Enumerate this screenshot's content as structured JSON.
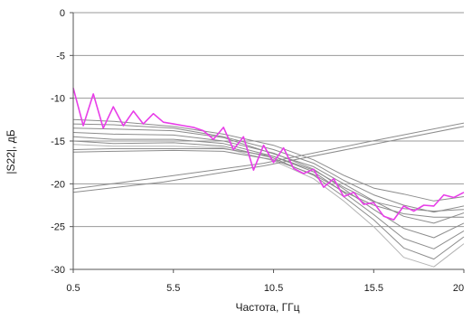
{
  "chart_data": {
    "type": "line",
    "title": "",
    "xlabel": "Частота, ГГц",
    "ylabel": "|S22|, дБ",
    "xlim": [
      0.5,
      20
    ],
    "ylim": [
      -30,
      0
    ],
    "x_ticks": [
      0.5,
      5.5,
      10.5,
      15.5,
      20
    ],
    "x_tick_labels": [
      "0.5",
      "5.5",
      "10.5",
      "15.5",
      "20"
    ],
    "y_ticks": [
      0,
      -5,
      -10,
      -15,
      -20,
      -25,
      -30
    ],
    "y_tick_labels": [
      "0",
      "-5",
      "-10",
      "-15",
      "-20",
      "-25",
      "-30"
    ],
    "grid": "horizontal",
    "legend": "none",
    "colors": {
      "highlight": "#e83ee8",
      "family": "#8c8c8c",
      "family_light": "#b4b4b4",
      "axis": "#555555",
      "grid": "#9a9a9a"
    },
    "series": [
      {
        "color": "#e83ee8",
        "x": [
          0.5,
          1.0,
          1.5,
          2.0,
          2.5,
          3.0,
          3.5,
          4.0,
          4.5,
          5.0,
          5.5,
          6.0,
          6.5,
          7.0,
          7.5,
          8.0,
          8.5,
          9.0,
          9.5,
          10.0,
          10.5,
          11.0,
          11.5,
          12.0,
          12.5,
          13.0,
          13.5,
          14.0,
          14.5,
          15.0,
          15.5,
          16.0,
          16.5,
          17.0,
          17.5,
          18.0,
          18.5,
          19.0,
          19.5,
          20.0
        ],
        "values": [
          -8.8,
          -13.2,
          -9.5,
          -13.5,
          -11.0,
          -13.2,
          -11.5,
          -13.0,
          -11.8,
          -12.8,
          -13.0,
          -13.2,
          -13.4,
          -13.8,
          -14.8,
          -13.4,
          -16.0,
          -14.5,
          -18.4,
          -15.5,
          -17.5,
          -15.8,
          -18.2,
          -18.8,
          -18.3,
          -20.4,
          -19.4,
          -21.5,
          -21.0,
          -22.4,
          -22.2,
          -23.8,
          -24.2,
          -22.6,
          -23.2,
          -22.5,
          -22.6,
          -21.3,
          -21.6,
          -21.0
        ]
      },
      {
        "color": "#8c8c8c",
        "x": [
          0.5,
          2.5,
          5.5,
          8.0,
          10.5,
          12.5,
          14.0,
          15.5,
          17.0,
          18.5,
          20.0
        ],
        "values": [
          -12.5,
          -12.7,
          -13.3,
          -14.2,
          -15.5,
          -17.2,
          -19.0,
          -20.5,
          -21.2,
          -22.0,
          -21.5
        ]
      },
      {
        "color": "#8c8c8c",
        "x": [
          0.5,
          2.5,
          5.5,
          8.0,
          10.5,
          12.5,
          14.0,
          15.5,
          17.0,
          18.5,
          20.0
        ],
        "values": [
          -13.0,
          -13.1,
          -13.5,
          -14.5,
          -16.0,
          -17.6,
          -19.6,
          -21.3,
          -22.5,
          -23.3,
          -22.6
        ]
      },
      {
        "color": "#8c8c8c",
        "x": [
          0.5,
          2.5,
          5.5,
          8.0,
          10.5,
          12.5,
          14.0,
          15.5,
          17.0,
          18.5,
          20.0
        ],
        "values": [
          -13.5,
          -13.6,
          -13.8,
          -14.6,
          -16.5,
          -18.0,
          -20.0,
          -22.0,
          -23.8,
          -24.6,
          -23.4
        ]
      },
      {
        "color": "#8c8c8c",
        "x": [
          0.5,
          2.5,
          5.5,
          8.0,
          10.5,
          12.5,
          14.0,
          15.5,
          17.0,
          18.5,
          20.0
        ],
        "values": [
          -14.0,
          -14.2,
          -14.3,
          -15.0,
          -16.4,
          -18.3,
          -20.6,
          -23.0,
          -25.2,
          -26.3,
          -24.6
        ]
      },
      {
        "color": "#8c8c8c",
        "x": [
          0.5,
          2.5,
          5.5,
          8.0,
          10.5,
          12.5,
          14.0,
          15.5,
          17.0,
          18.5,
          20.0
        ],
        "values": [
          -14.5,
          -14.8,
          -14.8,
          -15.3,
          -16.8,
          -18.6,
          -21.0,
          -23.6,
          -26.4,
          -27.6,
          -25.5
        ]
      },
      {
        "color": "#8c8c8c",
        "x": [
          0.5,
          2.5,
          5.5,
          8.0,
          10.5,
          12.5,
          14.0,
          15.5,
          17.0,
          18.5,
          20.0
        ],
        "values": [
          -15.0,
          -15.3,
          -15.2,
          -15.6,
          -17.0,
          -19.0,
          -21.5,
          -24.2,
          -27.5,
          -28.8,
          -26.2
        ]
      },
      {
        "color": "#b4b4b4",
        "x": [
          0.5,
          2.5,
          5.5,
          8.0,
          10.5,
          12.5,
          14.0,
          15.5,
          17.0,
          18.5,
          20.0
        ],
        "values": [
          -15.4,
          -15.6,
          -15.6,
          -15.8,
          -17.3,
          -19.4,
          -22.0,
          -25.0,
          -28.6,
          -29.7,
          -27.0
        ]
      },
      {
        "color": "#8c8c8c",
        "x": [
          0.5,
          2.5,
          5.5,
          8.0,
          10.5,
          12.5,
          14.0,
          15.5,
          17.0,
          18.5,
          20.0
        ],
        "values": [
          -16.0,
          -15.9,
          -15.9,
          -15.9,
          -16.8,
          -18.4,
          -20.4,
          -22.1,
          -22.9,
          -23.2,
          -23.0
        ]
      },
      {
        "color": "#8c8c8c",
        "x": [
          0.5,
          2.5,
          5.5,
          8.0,
          10.5,
          12.5,
          14.0,
          15.5,
          17.0,
          18.5,
          20.0
        ],
        "values": [
          -16.3,
          -16.2,
          -16.1,
          -16.2,
          -17.2,
          -18.9,
          -20.9,
          -22.5,
          -23.5,
          -23.9,
          -23.9
        ]
      },
      {
        "color": "#8c8c8c",
        "x": [
          0.5,
          5.0,
          10.0,
          15.0,
          20.0
        ],
        "values": [
          -20.6,
          -19.2,
          -17.6,
          -15.2,
          -12.9
        ]
      },
      {
        "color": "#8c8c8c",
        "x": [
          0.5,
          5.0,
          10.0,
          15.0,
          20.0
        ],
        "values": [
          -21.0,
          -19.8,
          -17.9,
          -15.6,
          -13.3
        ]
      }
    ]
  }
}
